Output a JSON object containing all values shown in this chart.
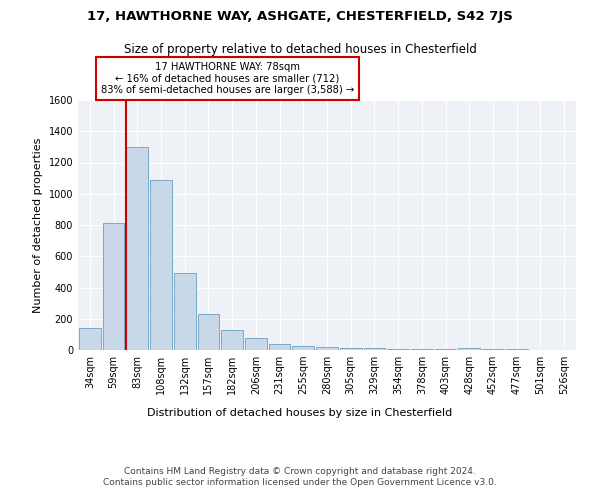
{
  "title1": "17, HAWTHORNE WAY, ASHGATE, CHESTERFIELD, S42 7JS",
  "title2": "Size of property relative to detached houses in Chesterfield",
  "xlabel": "Distribution of detached houses by size in Chesterfield",
  "ylabel": "Number of detached properties",
  "annotation_line1": "17 HAWTHORNE WAY: 78sqm",
  "annotation_line2": "← 16% of detached houses are smaller (712)",
  "annotation_line3": "83% of semi-detached houses are larger (3,588) →",
  "categories": [
    "34sqm",
    "59sqm",
    "83sqm",
    "108sqm",
    "132sqm",
    "157sqm",
    "182sqm",
    "206sqm",
    "231sqm",
    "255sqm",
    "280sqm",
    "305sqm",
    "329sqm",
    "354sqm",
    "378sqm",
    "403sqm",
    "428sqm",
    "452sqm",
    "477sqm",
    "501sqm",
    "526sqm"
  ],
  "values": [
    140,
    810,
    1300,
    1090,
    490,
    230,
    130,
    75,
    40,
    25,
    22,
    15,
    12,
    8,
    7,
    6,
    15,
    5,
    4,
    3,
    2
  ],
  "bar_color": "#c8d8e8",
  "bar_edge_color": "#7aaac8",
  "marker_line_color": "#cc0000",
  "annotation_box_color": "#cc0000",
  "background_color": "#eef2f7",
  "ylim": [
    0,
    1600
  ],
  "yticks": [
    0,
    200,
    400,
    600,
    800,
    1000,
    1200,
    1400,
    1600
  ],
  "marker_bar_index": 2,
  "footer": "Contains HM Land Registry data © Crown copyright and database right 2024.\nContains public sector information licensed under the Open Government Licence v3.0.",
  "title1_fontsize": 9.5,
  "title2_fontsize": 8.5,
  "xlabel_fontsize": 8,
  "ylabel_fontsize": 8,
  "tick_fontsize": 7,
  "footer_fontsize": 6.5
}
